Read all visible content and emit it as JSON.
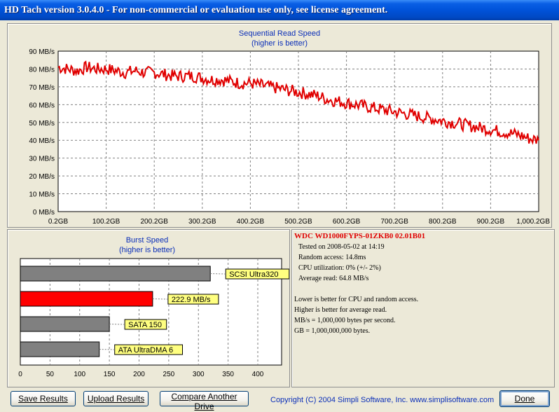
{
  "window": {
    "title": "HD Tach version 3.0.4.0  - For non-commercial or evaluation use only, see license agreement."
  },
  "colors": {
    "accent_red": "#E00000",
    "bar_gray": "#808080",
    "label_bg": "#FFFF80",
    "title_blue": "#0A2EB8"
  },
  "chart_data": [
    {
      "type": "line",
      "title": "Sequential Read Speed",
      "subtitle": "(higher is better)",
      "xlabel": "",
      "ylabel": "",
      "x_ticks": [
        "0.2GB",
        "100.2GB",
        "200.2GB",
        "300.2GB",
        "400.2GB",
        "500.2GB",
        "600.2GB",
        "700.2GB",
        "800.2GB",
        "900.2GB",
        "1,000.2GB"
      ],
      "y_ticks": [
        "0 MB/s",
        "10 MB/s",
        "20 MB/s",
        "30 MB/s",
        "40 MB/s",
        "50 MB/s",
        "60 MB/s",
        "70 MB/s",
        "80 MB/s",
        "90 MB/s"
      ],
      "xlim": [
        0.2,
        1000.2
      ],
      "ylim": [
        0,
        90
      ],
      "grid": true,
      "series": [
        {
          "color": "#E00000",
          "x": [
            0.2,
            20,
            40,
            60,
            80,
            100,
            120,
            140,
            160,
            180,
            200,
            220,
            240,
            260,
            280,
            300,
            320,
            340,
            360,
            380,
            400,
            420,
            440,
            460,
            480,
            500,
            520,
            540,
            560,
            580,
            600,
            620,
            640,
            660,
            680,
            700,
            720,
            740,
            760,
            780,
            800,
            820,
            840,
            860,
            880,
            900,
            920,
            940,
            960,
            980,
            1000.2
          ],
          "y": [
            81,
            80,
            79,
            81,
            80,
            80,
            79,
            78,
            79,
            78,
            78,
            77,
            76,
            76,
            76,
            75,
            74,
            74,
            73,
            72,
            72,
            71,
            70,
            69,
            68,
            67,
            66,
            65,
            63,
            62,
            61,
            60,
            59,
            58,
            57,
            56,
            55,
            54,
            53,
            52,
            51,
            50,
            49,
            48,
            47,
            46,
            45,
            44,
            43,
            41,
            40
          ]
        }
      ]
    },
    {
      "type": "bar",
      "orientation": "horizontal",
      "title": "Burst Speed",
      "subtitle": "(higher is better)",
      "x_ticks": [
        "0",
        "50",
        "100",
        "150",
        "200",
        "250",
        "300",
        "350",
        "400"
      ],
      "xlim": [
        0,
        400
      ],
      "grid": true,
      "bars": [
        {
          "label": "SCSI Ultra320",
          "value": 320,
          "color": "#808080"
        },
        {
          "label": "222.9 MB/s",
          "value": 222.9,
          "color": "#FF0000"
        },
        {
          "label": "SATA 150",
          "value": 150,
          "color": "#808080"
        },
        {
          "label": "ATA UltraDMA 6",
          "value": 133,
          "color": "#808080"
        }
      ]
    }
  ],
  "info": {
    "drive": "WDC  WD1000FYPS-01ZKB0 02.01B01",
    "tested": "Tested on 2008-05-02 at 14:19",
    "random_access": "Random access: 14.8ms",
    "cpu": "CPU utilization: 0% (+/- 2%)",
    "avg_read": "Average read: 64.8 MB/s",
    "note1": "Lower is better for CPU and random access.",
    "note2": "Higher is better for average read.",
    "note3": "MB/s = 1,000,000 bytes per second.",
    "note4": "GB = 1,000,000,000 bytes."
  },
  "buttons": {
    "save": "Save Results",
    "upload": "Upload Results",
    "compare": "Compare Another Drive",
    "done": "Done"
  },
  "footer": {
    "copyright": "Copyright (C) 2004 Simpli Software, Inc. www.simplisoftware.com"
  }
}
